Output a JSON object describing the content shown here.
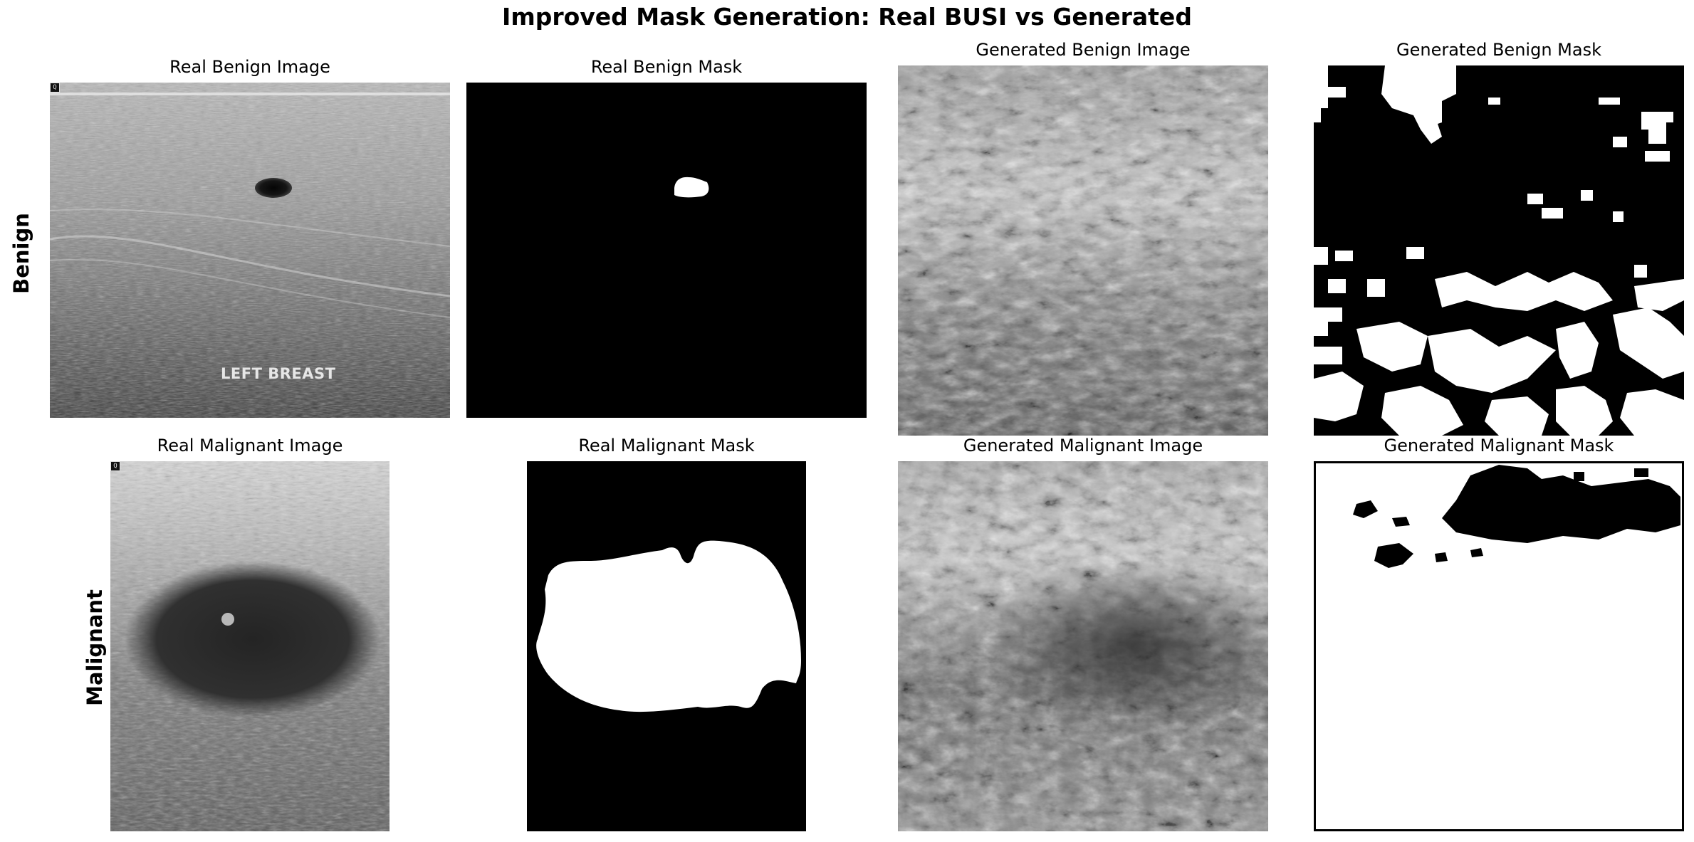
{
  "figure": {
    "title": "Improved Mask Generation: Real BUSI vs Generated",
    "rows": [
      {
        "label": "Benign",
        "panels": [
          {
            "title": "Real Benign Image",
            "kind": "real-ultrasound",
            "burned_text": "LEFT BREAST",
            "corner_marker": "Q"
          },
          {
            "title": "Real Benign Mask",
            "kind": "real-mask"
          },
          {
            "title": "Generated Benign Image",
            "kind": "generated-image"
          },
          {
            "title": "Generated Benign Mask",
            "kind": "generated-mask"
          }
        ]
      },
      {
        "label": "Malignant",
        "panels": [
          {
            "title": "Real Malignant Image",
            "kind": "real-ultrasound",
            "corner_marker": "Q"
          },
          {
            "title": "Real Malignant Mask",
            "kind": "real-mask"
          },
          {
            "title": "Generated Malignant Image",
            "kind": "generated-image"
          },
          {
            "title": "Generated Malignant Mask",
            "kind": "generated-mask"
          }
        ]
      }
    ]
  },
  "colors": {
    "background": "#ffffff",
    "mask_on": "#ffffff",
    "mask_off": "#000000"
  }
}
